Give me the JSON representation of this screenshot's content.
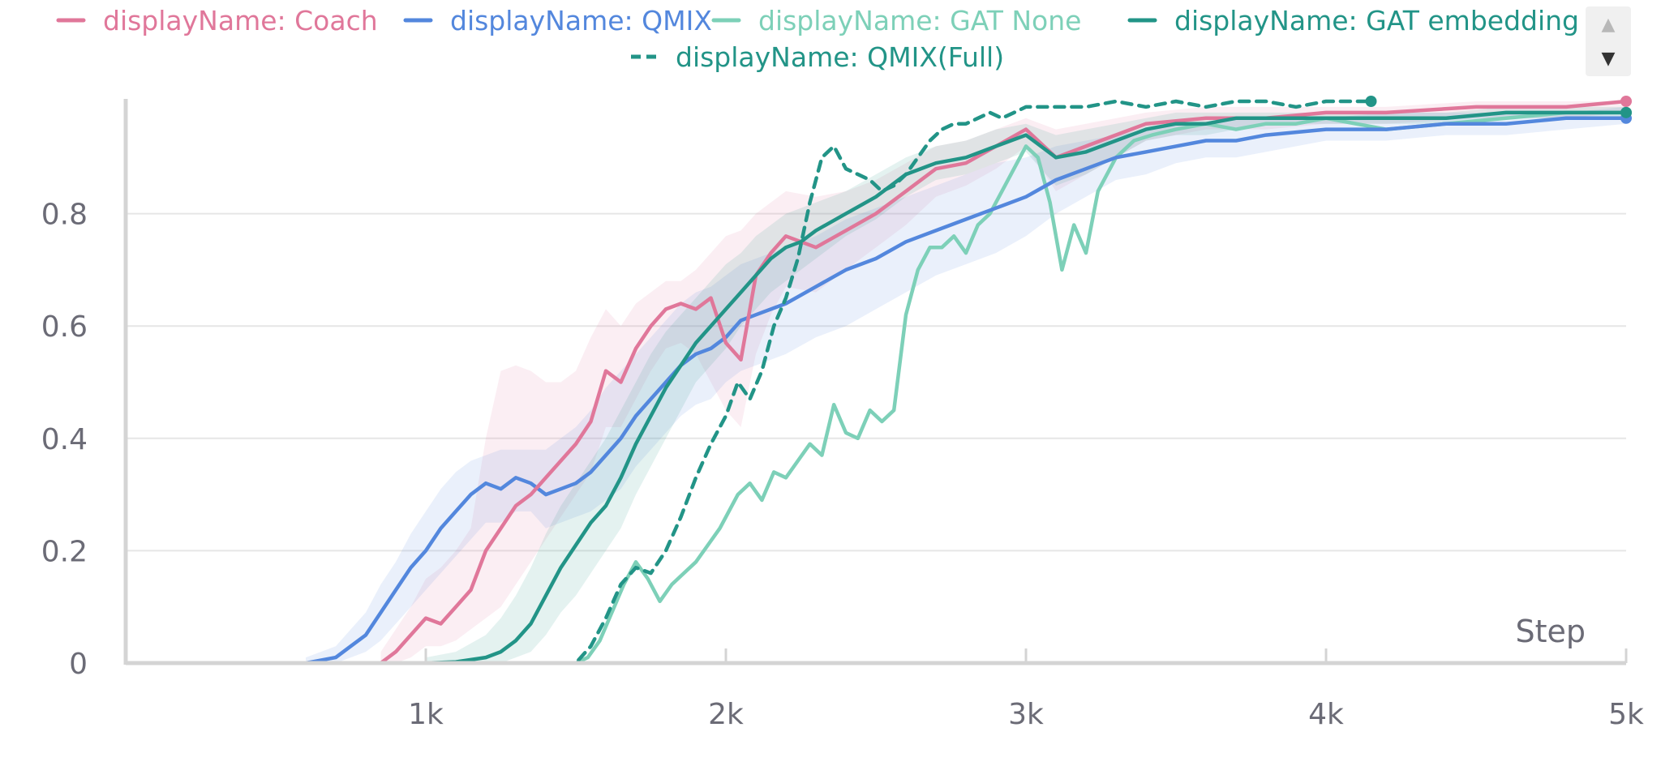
{
  "colors": {
    "Coach": "#e0779a",
    "QMIX": "#5387dd",
    "GAT None": "#7dd0b8",
    "GAT embedding": "#229487",
    "QMIX(Full)": "#229487",
    "grid": "#e6e6e6",
    "axis": "#d4d4d4",
    "text": "#6b6b76"
  },
  "legend": {
    "items": [
      {
        "label": "displayName: Coach",
        "series": "Coach",
        "dash": false
      },
      {
        "label": "displayName: QMIX",
        "series": "QMIX",
        "dash": false
      },
      {
        "label": "displayName: GAT None",
        "series": "GAT None",
        "dash": false
      },
      {
        "label": "displayName: GAT embedding",
        "series": "GAT embedding",
        "dash": false
      },
      {
        "label": "displayName: QMIX(Full)",
        "series": "QMIX(Full)",
        "dash": true
      }
    ],
    "scroll_up_icon": "▲",
    "scroll_down_icon": "▼"
  },
  "chart_data": {
    "type": "line",
    "title": "",
    "xlabel": "Step",
    "ylabel": "",
    "xlim": [
      0,
      5000
    ],
    "ylim": [
      0,
      1
    ],
    "xticks": [
      {
        "value": 1000,
        "label": "1k"
      },
      {
        "value": 2000,
        "label": "2k"
      },
      {
        "value": 3000,
        "label": "3k"
      },
      {
        "value": 4000,
        "label": "4k"
      },
      {
        "value": 5000,
        "label": "5k"
      }
    ],
    "yticks": [
      {
        "value": 0,
        "label": "0"
      },
      {
        "value": 0.2,
        "label": "0.2"
      },
      {
        "value": 0.4,
        "label": "0.4"
      },
      {
        "value": 0.6,
        "label": "0.6"
      },
      {
        "value": 0.8,
        "label": "0.8"
      }
    ],
    "grid": true,
    "legend_position": "top",
    "series": [
      {
        "name": "Coach",
        "x": [
          850,
          900,
          950,
          1000,
          1050,
          1100,
          1150,
          1200,
          1250,
          1300,
          1350,
          1400,
          1450,
          1500,
          1550,
          1600,
          1650,
          1700,
          1750,
          1800,
          1850,
          1900,
          1950,
          2000,
          2050,
          2100,
          2150,
          2200,
          2300,
          2400,
          2500,
          2600,
          2700,
          2800,
          2900,
          3000,
          3100,
          3200,
          3400,
          3600,
          3800,
          4000,
          4200,
          4500,
          4800,
          5000
        ],
        "y": [
          0,
          0.02,
          0.05,
          0.08,
          0.07,
          0.1,
          0.13,
          0.2,
          0.24,
          0.28,
          0.3,
          0.33,
          0.36,
          0.39,
          0.43,
          0.52,
          0.5,
          0.56,
          0.6,
          0.63,
          0.64,
          0.63,
          0.65,
          0.57,
          0.54,
          0.69,
          0.73,
          0.76,
          0.74,
          0.77,
          0.8,
          0.84,
          0.88,
          0.89,
          0.92,
          0.95,
          0.9,
          0.92,
          0.96,
          0.97,
          0.97,
          0.98,
          0.98,
          0.99,
          0.99,
          1.0
        ],
        "band": {
          "upper": [
            0.02,
            0.06,
            0.1,
            0.15,
            0.17,
            0.2,
            0.24,
            0.4,
            0.52,
            0.53,
            0.52,
            0.5,
            0.5,
            0.52,
            0.58,
            0.63,
            0.6,
            0.64,
            0.66,
            0.68,
            0.68,
            0.7,
            0.73,
            0.76,
            0.77,
            0.8,
            0.82,
            0.84,
            0.83,
            0.84,
            0.86,
            0.89,
            0.92,
            0.93,
            0.95,
            0.97,
            0.95,
            0.96,
            0.98,
            0.99,
            0.99,
            0.99,
            0.99,
            1.0,
            1.0,
            1.0
          ],
          "lower": [
            0,
            0,
            0.01,
            0.03,
            0.03,
            0.04,
            0.06,
            0.08,
            0.1,
            0.14,
            0.18,
            0.22,
            0.26,
            0.3,
            0.34,
            0.42,
            0.42,
            0.47,
            0.52,
            0.56,
            0.57,
            0.55,
            0.5,
            0.45,
            0.42,
            0.55,
            0.62,
            0.67,
            0.66,
            0.7,
            0.74,
            0.78,
            0.83,
            0.85,
            0.88,
            0.92,
            0.84,
            0.87,
            0.93,
            0.95,
            0.95,
            0.96,
            0.96,
            0.97,
            0.97,
            0.98
          ]
        }
      },
      {
        "name": "QMIX",
        "x": [
          600,
          700,
          750,
          800,
          850,
          900,
          950,
          1000,
          1050,
          1100,
          1150,
          1200,
          1250,
          1300,
          1350,
          1400,
          1450,
          1500,
          1550,
          1600,
          1650,
          1700,
          1750,
          1800,
          1850,
          1900,
          1950,
          2000,
          2050,
          2100,
          2200,
          2300,
          2400,
          2500,
          2600,
          2700,
          2800,
          2900,
          3000,
          3100,
          3200,
          3300,
          3400,
          3500,
          3600,
          3700,
          3800,
          4000,
          4200,
          4400,
          4600,
          4800,
          5000
        ],
        "y": [
          0,
          0.01,
          0.03,
          0.05,
          0.09,
          0.13,
          0.17,
          0.2,
          0.24,
          0.27,
          0.3,
          0.32,
          0.31,
          0.33,
          0.32,
          0.3,
          0.31,
          0.32,
          0.34,
          0.37,
          0.4,
          0.44,
          0.47,
          0.5,
          0.53,
          0.55,
          0.56,
          0.58,
          0.61,
          0.62,
          0.64,
          0.67,
          0.7,
          0.72,
          0.75,
          0.77,
          0.79,
          0.81,
          0.83,
          0.86,
          0.88,
          0.9,
          0.91,
          0.92,
          0.93,
          0.93,
          0.94,
          0.95,
          0.95,
          0.96,
          0.96,
          0.97,
          0.97
        ],
        "band": {
          "upper": [
            0.01,
            0.03,
            0.06,
            0.09,
            0.14,
            0.18,
            0.23,
            0.27,
            0.31,
            0.34,
            0.36,
            0.37,
            0.38,
            0.38,
            0.38,
            0.38,
            0.4,
            0.42,
            0.45,
            0.49,
            0.52,
            0.55,
            0.58,
            0.61,
            0.64,
            0.66,
            0.67,
            0.69,
            0.71,
            0.72,
            0.74,
            0.76,
            0.79,
            0.81,
            0.83,
            0.85,
            0.87,
            0.89,
            0.9,
            0.92,
            0.93,
            0.94,
            0.95,
            0.96,
            0.96,
            0.97,
            0.97,
            0.97,
            0.98,
            0.98,
            0.98,
            0.98,
            0.99
          ],
          "lower": [
            0,
            0,
            0.01,
            0.02,
            0.04,
            0.07,
            0.1,
            0.13,
            0.16,
            0.19,
            0.22,
            0.25,
            0.25,
            0.27,
            0.27,
            0.24,
            0.25,
            0.26,
            0.27,
            0.29,
            0.31,
            0.35,
            0.38,
            0.41,
            0.44,
            0.46,
            0.47,
            0.5,
            0.52,
            0.53,
            0.55,
            0.58,
            0.6,
            0.63,
            0.66,
            0.69,
            0.71,
            0.73,
            0.76,
            0.8,
            0.83,
            0.86,
            0.87,
            0.89,
            0.9,
            0.9,
            0.91,
            0.93,
            0.93,
            0.94,
            0.94,
            0.95,
            0.96
          ]
        }
      },
      {
        "name": "GAT None",
        "x": [
          1500,
          1540,
          1580,
          1620,
          1660,
          1700,
          1740,
          1780,
          1820,
          1860,
          1900,
          1940,
          1980,
          2000,
          2040,
          2080,
          2120,
          2160,
          2200,
          2240,
          2280,
          2320,
          2360,
          2400,
          2440,
          2480,
          2520,
          2560,
          2600,
          2640,
          2680,
          2720,
          2760,
          2800,
          2840,
          2880,
          2920,
          2960,
          3000,
          3040,
          3080,
          3120,
          3160,
          3200,
          3240,
          3300,
          3360,
          3420,
          3500,
          3600,
          3700,
          3800,
          3900,
          4000,
          4200,
          4400,
          4600,
          4800,
          5000
        ],
        "y": [
          0,
          0.01,
          0.04,
          0.09,
          0.14,
          0.18,
          0.15,
          0.11,
          0.14,
          0.16,
          0.18,
          0.21,
          0.24,
          0.26,
          0.3,
          0.32,
          0.29,
          0.34,
          0.33,
          0.36,
          0.39,
          0.37,
          0.46,
          0.41,
          0.4,
          0.45,
          0.43,
          0.45,
          0.62,
          0.7,
          0.74,
          0.74,
          0.76,
          0.73,
          0.78,
          0.8,
          0.84,
          0.88,
          0.92,
          0.9,
          0.82,
          0.7,
          0.78,
          0.73,
          0.84,
          0.9,
          0.93,
          0.94,
          0.95,
          0.96,
          0.95,
          0.96,
          0.96,
          0.97,
          0.95,
          0.96,
          0.97,
          0.98,
          0.98
        ],
        "band": null
      },
      {
        "name": "GAT embedding",
        "x": [
          1000,
          1100,
          1200,
          1250,
          1300,
          1350,
          1400,
          1450,
          1500,
          1550,
          1600,
          1650,
          1700,
          1750,
          1800,
          1850,
          1900,
          1950,
          2000,
          2050,
          2100,
          2150,
          2200,
          2250,
          2300,
          2400,
          2500,
          2600,
          2700,
          2800,
          2900,
          3000,
          3100,
          3200,
          3300,
          3400,
          3500,
          3600,
          3700,
          3800,
          4000,
          4200,
          4400,
          4600,
          4800,
          5000
        ],
        "y": [
          0,
          0.002,
          0.01,
          0.02,
          0.04,
          0.07,
          0.12,
          0.17,
          0.21,
          0.25,
          0.28,
          0.33,
          0.39,
          0.44,
          0.49,
          0.53,
          0.57,
          0.6,
          0.63,
          0.66,
          0.69,
          0.72,
          0.74,
          0.75,
          0.77,
          0.8,
          0.83,
          0.87,
          0.89,
          0.9,
          0.92,
          0.94,
          0.9,
          0.91,
          0.93,
          0.95,
          0.96,
          0.96,
          0.97,
          0.97,
          0.97,
          0.97,
          0.97,
          0.98,
          0.98,
          0.98
        ],
        "band": {
          "upper": [
            0.01,
            0.02,
            0.05,
            0.08,
            0.12,
            0.17,
            0.23,
            0.28,
            0.32,
            0.36,
            0.4,
            0.45,
            0.5,
            0.55,
            0.59,
            0.62,
            0.65,
            0.68,
            0.71,
            0.73,
            0.76,
            0.78,
            0.8,
            0.81,
            0.82,
            0.84,
            0.87,
            0.9,
            0.92,
            0.93,
            0.95,
            0.96,
            0.94,
            0.95,
            0.96,
            0.97,
            0.98,
            0.98,
            0.98,
            0.98,
            0.98,
            0.98,
            0.98,
            0.99,
            0.99,
            0.99
          ],
          "lower": [
            0,
            0,
            0,
            0,
            0.01,
            0.02,
            0.05,
            0.09,
            0.12,
            0.16,
            0.2,
            0.24,
            0.3,
            0.35,
            0.4,
            0.45,
            0.5,
            0.53,
            0.56,
            0.6,
            0.63,
            0.66,
            0.68,
            0.7,
            0.72,
            0.76,
            0.79,
            0.83,
            0.86,
            0.87,
            0.89,
            0.91,
            0.85,
            0.87,
            0.9,
            0.93,
            0.94,
            0.94,
            0.95,
            0.96,
            0.96,
            0.96,
            0.96,
            0.97,
            0.97,
            0.97
          ]
        }
      },
      {
        "name": "QMIX(Full)",
        "x": [
          1400,
          1500,
          1550,
          1600,
          1650,
          1700,
          1750,
          1800,
          1850,
          1900,
          1950,
          2000,
          2040,
          2080,
          2120,
          2160,
          2200,
          2240,
          2280,
          2320,
          2360,
          2400,
          2440,
          2480,
          2520,
          2560,
          2600,
          2640,
          2680,
          2720,
          2760,
          2800,
          2840,
          2880,
          2920,
          2960,
          3000,
          3100,
          3200,
          3300,
          3400,
          3500,
          3600,
          3700,
          3800,
          3900,
          4000,
          4100,
          4150
        ],
        "y": [
          0,
          0,
          0.03,
          0.08,
          0.14,
          0.17,
          0.16,
          0.2,
          0.26,
          0.33,
          0.39,
          0.44,
          0.5,
          0.47,
          0.52,
          0.6,
          0.65,
          0.72,
          0.82,
          0.9,
          0.92,
          0.88,
          0.87,
          0.86,
          0.84,
          0.85,
          0.87,
          0.9,
          0.93,
          0.95,
          0.96,
          0.96,
          0.97,
          0.98,
          0.97,
          0.98,
          0.99,
          0.99,
          0.99,
          1.0,
          0.99,
          1.0,
          0.99,
          1.0,
          1.0,
          0.99,
          1.0,
          1.0,
          1.0
        ],
        "band": null
      }
    ]
  }
}
